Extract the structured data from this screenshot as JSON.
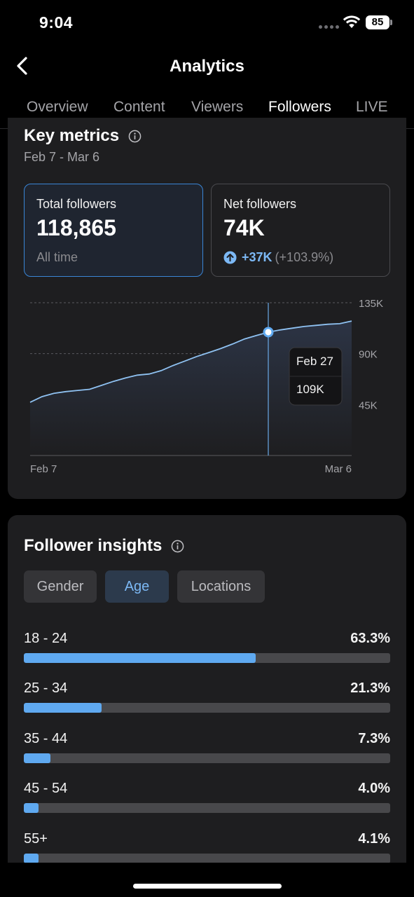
{
  "status_bar": {
    "time": "9:04",
    "battery": "85"
  },
  "header": {
    "title": "Analytics",
    "back_icon": "chevron-left-icon"
  },
  "tabs": [
    {
      "label": "Overview",
      "active": false
    },
    {
      "label": "Content",
      "active": false
    },
    {
      "label": "Viewers",
      "active": false
    },
    {
      "label": "Followers",
      "active": true
    },
    {
      "label": "LIVE",
      "active": false
    }
  ],
  "key_metrics": {
    "title": "Key metrics",
    "date_range": "Feb 7 - Mar 6",
    "total": {
      "label": "Total followers",
      "value": "118,865",
      "sub": "All time"
    },
    "net": {
      "label": "Net followers",
      "value": "74K",
      "growth": "+37K",
      "growth_pct": "(+103.9%)"
    }
  },
  "chart_data": {
    "type": "area",
    "x_start_label": "Feb 7",
    "x_end_label": "Mar 6",
    "y_ticks": [
      {
        "value": 45000,
        "label": "45K"
      },
      {
        "value": 90000,
        "label": "90K"
      },
      {
        "value": 135000,
        "label": "135K"
      }
    ],
    "ylim": [
      0,
      135000
    ],
    "grid": true,
    "points": [
      {
        "day": 0,
        "value": 47000
      },
      {
        "day": 1,
        "value": 52000
      },
      {
        "day": 2,
        "value": 55000
      },
      {
        "day": 3,
        "value": 56500
      },
      {
        "day": 4,
        "value": 57500
      },
      {
        "day": 5,
        "value": 58500
      },
      {
        "day": 6,
        "value": 62000
      },
      {
        "day": 7,
        "value": 65500
      },
      {
        "day": 8,
        "value": 68500
      },
      {
        "day": 9,
        "value": 71000
      },
      {
        "day": 10,
        "value": 72000
      },
      {
        "day": 11,
        "value": 75000
      },
      {
        "day": 12,
        "value": 79500
      },
      {
        "day": 13,
        "value": 83500
      },
      {
        "day": 14,
        "value": 87500
      },
      {
        "day": 15,
        "value": 91000
      },
      {
        "day": 16,
        "value": 94500
      },
      {
        "day": 17,
        "value": 98500
      },
      {
        "day": 18,
        "value": 103000
      },
      {
        "day": 19,
        "value": 106000
      },
      {
        "day": 20,
        "value": 109000
      },
      {
        "day": 21,
        "value": 111000
      },
      {
        "day": 22,
        "value": 112500
      },
      {
        "day": 23,
        "value": 114000
      },
      {
        "day": 24,
        "value": 115000
      },
      {
        "day": 25,
        "value": 116000
      },
      {
        "day": 26,
        "value": 116500
      },
      {
        "day": 27,
        "value": 118865
      }
    ],
    "tooltip": {
      "day": 20,
      "date": "Feb 27",
      "value_label": "109K"
    },
    "colors": {
      "line": "#8fc2f2",
      "fill_top": "#2c3445",
      "grid": "#5a5a5e"
    }
  },
  "insights": {
    "title": "Follower insights",
    "filters": [
      {
        "label": "Gender",
        "active": false
      },
      {
        "label": "Age",
        "active": true
      },
      {
        "label": "Locations",
        "active": false
      }
    ],
    "age_groups": [
      {
        "label": "18 - 24",
        "pct": "63.3%",
        "value": 0.633
      },
      {
        "label": "25 - 34",
        "pct": "21.3%",
        "value": 0.213
      },
      {
        "label": "35 - 44",
        "pct": "7.3%",
        "value": 0.073
      },
      {
        "label": "45 - 54",
        "pct": "4.0%",
        "value": 0.04
      },
      {
        "label": "55+",
        "pct": "4.1%",
        "value": 0.041
      }
    ]
  },
  "colors": {
    "accent": "#5fa9f0",
    "card": "#1e1e20",
    "background": "#000000"
  }
}
